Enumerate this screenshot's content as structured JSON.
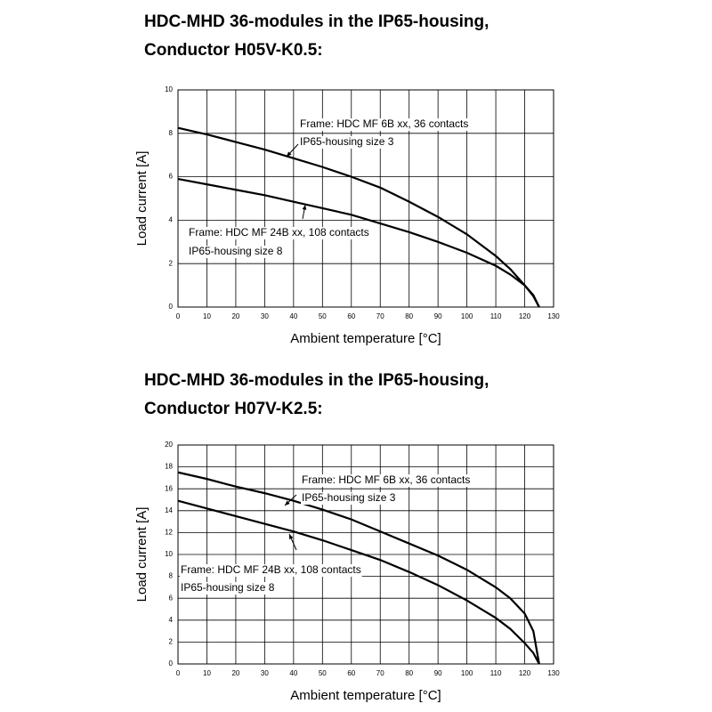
{
  "chart_data": [
    {
      "type": "line",
      "title": "HDC-MHD 36-modules in the IP65-housing,",
      "subtitle": "Conductor H05V-K0.5:",
      "x_label": "Ambient temperature [°C]",
      "y_label": "Load current [A]",
      "xlim": [
        0,
        130
      ],
      "xticks": [
        0,
        10,
        20,
        30,
        40,
        50,
        60,
        70,
        80,
        90,
        100,
        110,
        120,
        130
      ],
      "ylim": [
        0,
        10
      ],
      "yticks": [
        0,
        2,
        4,
        6,
        8,
        10
      ],
      "grid": true,
      "x": [
        0,
        10,
        20,
        30,
        40,
        50,
        60,
        70,
        80,
        90,
        100,
        110,
        115,
        120,
        123,
        125
      ],
      "series": [
        {
          "color": "#000000",
          "values": [
            8.25,
            7.95,
            7.6,
            7.25,
            6.85,
            6.45,
            6.0,
            5.5,
            4.85,
            4.15,
            3.35,
            2.35,
            1.75,
            1.0,
            0.5,
            0
          ]
        },
        {
          "color": "#000000",
          "values": [
            5.9,
            5.65,
            5.4,
            5.15,
            4.85,
            4.55,
            4.25,
            3.85,
            3.45,
            3.0,
            2.5,
            1.9,
            1.5,
            1.0,
            0.55,
            0
          ]
        }
      ],
      "annotations": [
        "Frame: HDC MF 6B xx, 36 contacts",
        "IP65-housing size 3",
        "Frame: HDC MF 24B xx, 108 contacts",
        "IP65-housing size 8"
      ]
    },
    {
      "type": "line",
      "title": "HDC-MHD 36-modules in the IP65-housing,",
      "subtitle": "Conductor H07V-K2.5:",
      "x_label": "Ambient temperature [°C]",
      "y_label": "Load current [A]",
      "xlim": [
        0,
        130
      ],
      "xticks": [
        0,
        10,
        20,
        30,
        40,
        50,
        60,
        70,
        80,
        90,
        100,
        110,
        120,
        130
      ],
      "ylim": [
        0,
        20
      ],
      "yticks": [
        0,
        2,
        4,
        6,
        8,
        10,
        12,
        14,
        16,
        18,
        20
      ],
      "grid": true,
      "x": [
        0,
        10,
        20,
        30,
        40,
        50,
        60,
        70,
        80,
        90,
        100,
        110,
        115,
        120,
        123,
        125
      ],
      "series": [
        {
          "color": "#000000",
          "values": [
            17.5,
            16.9,
            16.2,
            15.6,
            14.9,
            14.1,
            13.2,
            12.1,
            11.0,
            9.9,
            8.6,
            7.0,
            6.0,
            4.6,
            3.0,
            0
          ]
        },
        {
          "color": "#000000",
          "values": [
            14.9,
            14.2,
            13.5,
            12.8,
            12.1,
            11.3,
            10.4,
            9.5,
            8.4,
            7.2,
            5.8,
            4.2,
            3.2,
            1.9,
            1.0,
            0
          ]
        }
      ],
      "annotations": [
        "Frame: HDC MF 6B xx, 36 contacts",
        "IP65-housing size 3",
        "Frame: HDC MF 24B xx, 108 contacts",
        "IP65-housing size 8"
      ]
    }
  ]
}
